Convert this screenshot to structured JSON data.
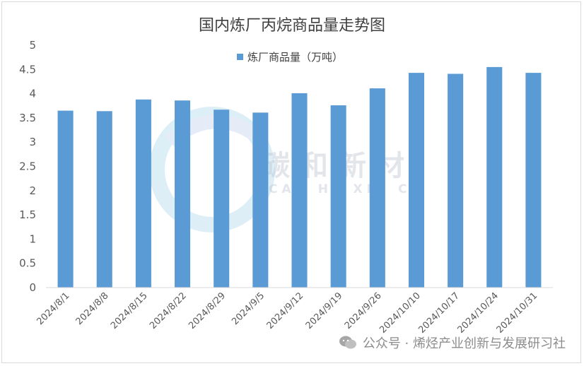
{
  "chart_data": {
    "type": "bar",
    "title": "国内炼厂丙烷商品量走势图",
    "legend": {
      "position": "top",
      "entries": [
        "炼厂商品量（万吨）"
      ]
    },
    "series": [
      {
        "name": "炼厂商品量（万吨）",
        "color": "#5b9bd5",
        "values": [
          3.65,
          3.64,
          3.88,
          3.86,
          3.67,
          3.61,
          4.01,
          3.76,
          4.11,
          4.43,
          4.41,
          4.55,
          4.43
        ]
      }
    ],
    "categories": [
      "2024/8/1",
      "2024/8/8",
      "2024/8/15",
      "2024/8/22",
      "2024/8/29",
      "2024/9/5",
      "2024/9/12",
      "2024/9/19",
      "2024/9/26",
      "2024/10/10",
      "2024/10/17",
      "2024/10/24",
      "2024/10/31"
    ],
    "ylim": [
      0,
      5
    ],
    "yticks": [
      "0",
      "0.5",
      "1",
      "1.5",
      "2",
      "2.5",
      "3",
      "3.5",
      "4",
      "4.5",
      "5"
    ],
    "grid": false,
    "xlabel": "",
    "ylabel": ""
  },
  "watermark": {
    "text": "碳和新材",
    "subtext": "CAN HE XIN CA"
  },
  "footer": {
    "text": "公众号 · 烯烃产业创新与发展研习社",
    "icon": "wechat-icon"
  }
}
